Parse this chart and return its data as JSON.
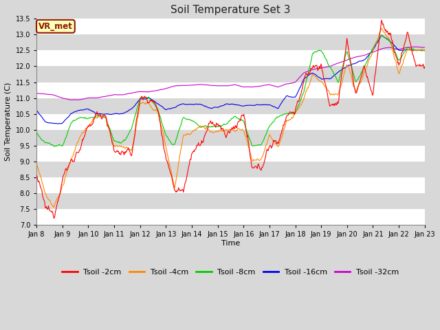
{
  "title": "Soil Temperature Set 3",
  "xlabel": "Time",
  "ylabel": "Soil Temperature (C)",
  "ylim": [
    7.0,
    13.5
  ],
  "x_tick_labels": [
    "Jan 8",
    "Jan 9",
    "Jan 10",
    "Jan 11",
    "Jan 12",
    "Jan 13",
    "Jan 14",
    "Jan 15",
    "Jan 16",
    "Jan 17",
    "Jan 18",
    "Jan 19",
    "Jan 20",
    "Jan 21",
    "Jan 22",
    "Jan 23"
  ],
  "legend_labels": [
    "Tsoil -2cm",
    "Tsoil -4cm",
    "Tsoil -8cm",
    "Tsoil -16cm",
    "Tsoil -32cm"
  ],
  "legend_colors": [
    "#ff0000",
    "#ff8800",
    "#00cc00",
    "#0000ee",
    "#cc00cc"
  ],
  "figure_bg": "#d8d8d8",
  "plot_bg": "#ffffff",
  "band_color": "#d8d8d8",
  "annotation_text": "VR_met",
  "annotation_bg": "#ffffbb",
  "annotation_border": "#8b1a00",
  "title_fontsize": 11,
  "tick_fontsize": 7,
  "label_fontsize": 8,
  "legend_fontsize": 8,
  "n_days": 15,
  "tsoil_2cm_anchors": [
    8.6,
    7.55,
    7.3,
    8.5,
    9.0,
    9.4,
    10.0,
    10.5,
    10.5,
    9.3,
    9.3,
    9.2,
    11.0,
    11.0,
    10.7,
    9.2,
    8.15,
    8.1,
    9.35,
    9.5,
    10.1,
    10.2,
    9.8,
    10.1,
    10.5,
    8.7,
    8.8,
    9.5,
    9.6,
    10.5,
    10.6,
    11.5,
    12.0,
    12.0,
    10.8,
    10.8,
    12.9,
    11.1,
    12.0,
    11.1,
    13.4,
    13.0,
    12.0,
    13.1,
    12.0,
    12.0
  ],
  "tsoil_4cm_anchors": [
    9.0,
    8.0,
    7.55,
    8.2,
    9.0,
    9.8,
    10.1,
    10.4,
    10.4,
    9.5,
    9.5,
    9.3,
    10.8,
    10.8,
    10.6,
    9.5,
    8.2,
    9.8,
    9.9,
    10.1,
    10.0,
    10.0,
    10.0,
    10.0,
    10.0,
    9.0,
    9.0,
    9.9,
    9.5,
    10.3,
    10.5,
    11.0,
    11.8,
    11.5,
    11.1,
    11.1,
    12.0,
    11.2,
    11.8,
    12.5,
    13.2,
    12.8,
    11.8,
    12.5,
    12.5,
    12.5
  ],
  "tsoil_8cm_anchors": [
    9.9,
    9.6,
    9.5,
    9.5,
    10.2,
    10.4,
    10.35,
    10.4,
    10.4,
    9.6,
    9.6,
    10.0,
    11.0,
    11.0,
    10.7,
    9.8,
    9.5,
    10.4,
    10.3,
    10.1,
    10.1,
    10.1,
    10.2,
    10.4,
    10.25,
    9.5,
    9.5,
    10.1,
    10.4,
    10.5,
    10.5,
    11.2,
    12.4,
    12.5,
    12.0,
    11.5,
    12.5,
    11.5,
    12.0,
    12.6,
    13.0,
    12.8,
    12.2,
    12.6,
    12.5,
    12.5
  ],
  "tsoil_16cm_anchors": [
    10.6,
    10.25,
    10.2,
    10.2,
    10.5,
    10.6,
    10.65,
    10.5,
    10.5,
    10.5,
    10.5,
    10.65,
    11.0,
    11.0,
    10.85,
    10.6,
    10.7,
    10.8,
    10.8,
    10.8,
    10.7,
    10.7,
    10.8,
    10.8,
    10.75,
    10.8,
    10.8,
    10.8,
    10.7,
    11.05,
    11.0,
    11.6,
    11.8,
    11.6,
    11.6,
    11.8,
    12.0,
    12.1,
    12.2,
    12.5,
    13.0,
    12.8,
    12.5,
    12.5,
    12.5,
    12.5
  ],
  "tsoil_32cm_anchors": [
    11.2,
    11.15,
    11.1,
    11.0,
    10.95,
    10.95,
    11.0,
    11.0,
    11.05,
    11.1,
    11.1,
    11.15,
    11.2,
    11.2,
    11.25,
    11.3,
    11.38,
    11.4,
    11.4,
    11.42,
    11.4,
    11.38,
    11.38,
    11.42,
    11.35,
    11.35,
    11.38,
    11.42,
    11.35,
    11.45,
    11.5,
    11.8,
    11.9,
    11.95,
    12.0,
    12.1,
    12.2,
    12.3,
    12.35,
    12.45,
    12.55,
    12.6,
    12.52,
    12.6,
    12.62,
    12.6
  ]
}
